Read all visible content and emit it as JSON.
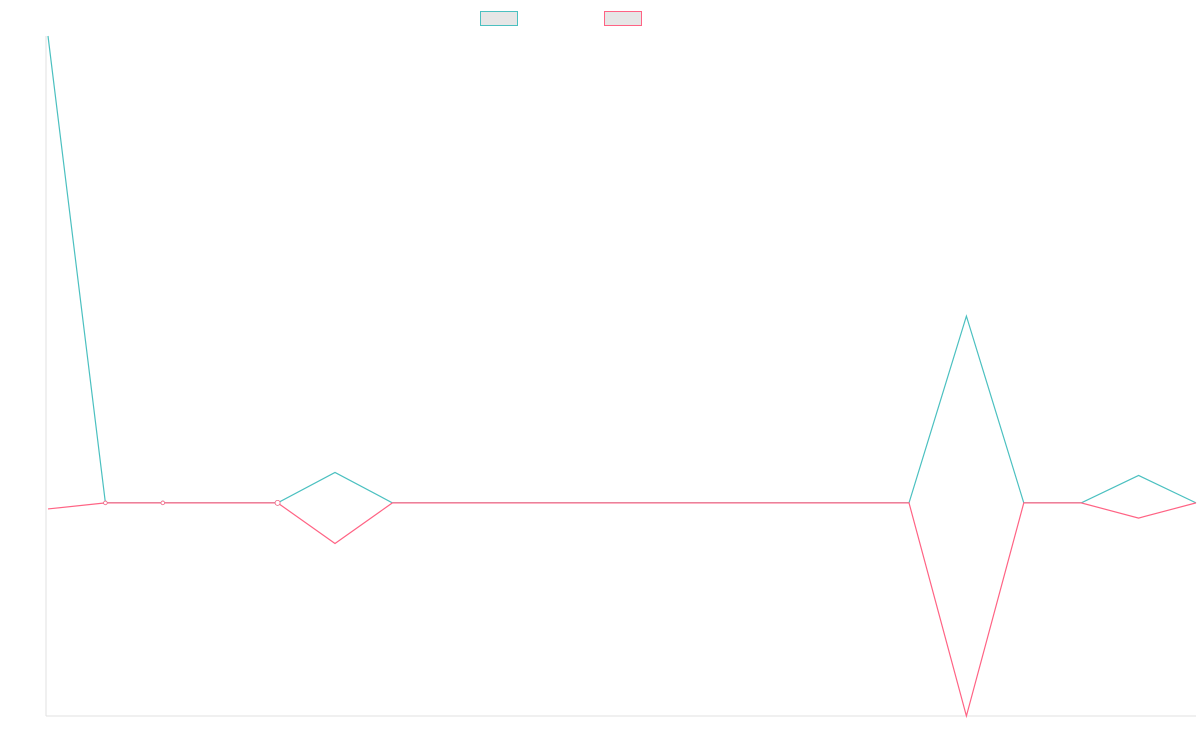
{
  "chart_data": {
    "type": "line",
    "x": [
      0,
      1,
      2,
      3,
      4,
      5,
      6,
      7,
      8,
      9,
      10,
      11,
      12,
      13,
      14,
      15,
      16,
      17,
      18,
      19,
      20
    ],
    "series": [
      {
        "color": "#4bc0c0",
        "values": [
          2300,
          0,
          0,
          0,
          0,
          150,
          0,
          0,
          0,
          0,
          0,
          0,
          0,
          0,
          0,
          0,
          920,
          0,
          0,
          135,
          0
        ]
      },
      {
        "color": "#ff6384",
        "values": [
          -30,
          0,
          0,
          0,
          0,
          -200,
          0,
          0,
          0,
          0,
          0,
          0,
          0,
          0,
          0,
          0,
          -1050,
          0,
          0,
          -75,
          0
        ]
      }
    ],
    "ylim": [
      -1050,
      2300
    ],
    "grid": false,
    "legend": "top-center"
  }
}
